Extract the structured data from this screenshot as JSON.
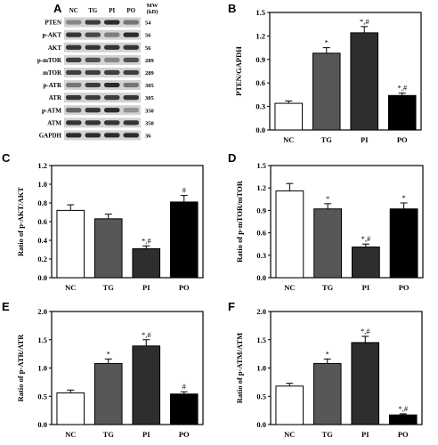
{
  "letters": [
    "A",
    "B",
    "C",
    "D",
    "E",
    "F"
  ],
  "blot": {
    "lanes": [
      "NC",
      "TG",
      "PI",
      "PO"
    ],
    "mw_header_line1": "MW",
    "mw_header_line2": "(kD)",
    "proteins": [
      {
        "name": "PTEN",
        "mw": "54"
      },
      {
        "name": "p-AKT",
        "mw": "56"
      },
      {
        "name": "AKT",
        "mw": "56"
      },
      {
        "name": "p-mTOR",
        "mw": "289"
      },
      {
        "name": "mTOR",
        "mw": "289"
      },
      {
        "name": "p-ATR",
        "mw": "305"
      },
      {
        "name": "ATR",
        "mw": "305"
      },
      {
        "name": "p-ATM",
        "mw": "350"
      },
      {
        "name": "ATM",
        "mw": "350"
      },
      {
        "name": "GAPDH",
        "mw": "36"
      }
    ]
  },
  "chart_data": [
    {
      "panel": "B",
      "type": "bar",
      "categories": [
        "NC",
        "TG",
        "PI",
        "PO"
      ],
      "values": [
        0.34,
        0.98,
        1.24,
        0.44
      ],
      "errors": [
        0.03,
        0.07,
        0.08,
        0.03
      ],
      "annotations": [
        "",
        "*",
        "*,#",
        "*,#"
      ],
      "ylabel": "PTEN/GAPDH",
      "ylim": [
        0.0,
        1.5
      ],
      "yticks": [
        "0.0",
        "0.3",
        "0.6",
        "0.9",
        "1.2",
        "1.5"
      ],
      "bar_colors": [
        "#ffffff",
        "#575757",
        "#2e2e2e",
        "#000000"
      ]
    },
    {
      "panel": "C",
      "type": "bar",
      "categories": [
        "NC",
        "TG",
        "PI",
        "PO"
      ],
      "values": [
        0.72,
        0.63,
        0.31,
        0.81
      ],
      "errors": [
        0.06,
        0.05,
        0.03,
        0.07
      ],
      "annotations": [
        "",
        "",
        "*,#",
        "#"
      ],
      "ylabel": "Ratio of p-AKT/AKT",
      "ylim": [
        0.0,
        1.2
      ],
      "yticks": [
        "0.0",
        "0.2",
        "0.4",
        "0.6",
        "0.8",
        "1.0",
        "1.2"
      ],
      "bar_colors": [
        "#ffffff",
        "#575757",
        "#2e2e2e",
        "#000000"
      ]
    },
    {
      "panel": "D",
      "type": "bar",
      "categories": [
        "NC",
        "TG",
        "PI",
        "PO"
      ],
      "values": [
        1.16,
        0.92,
        0.41,
        0.92
      ],
      "errors": [
        0.1,
        0.07,
        0.04,
        0.08
      ],
      "annotations": [
        "",
        "*",
        "*,#",
        "*"
      ],
      "ylabel": "Ratio of p-mTOR/mTOR",
      "ylim": [
        0.0,
        1.5
      ],
      "yticks": [
        "0.0",
        "0.3",
        "0.6",
        "0.9",
        "1.2",
        "1.5"
      ],
      "bar_colors": [
        "#ffffff",
        "#575757",
        "#2e2e2e",
        "#000000"
      ]
    },
    {
      "panel": "E",
      "type": "bar",
      "categories": [
        "NC",
        "TG",
        "PI",
        "PO"
      ],
      "values": [
        0.56,
        1.08,
        1.39,
        0.54
      ],
      "errors": [
        0.05,
        0.08,
        0.11,
        0.04
      ],
      "annotations": [
        "",
        "*",
        "*,#",
        "#"
      ],
      "ylabel": "Ratio of p-ATR/ATR",
      "ylim": [
        0.0,
        2.0
      ],
      "yticks": [
        "0.0",
        "0.5",
        "1.0",
        "1.5",
        "2.0"
      ],
      "bar_colors": [
        "#ffffff",
        "#575757",
        "#2e2e2e",
        "#000000"
      ]
    },
    {
      "panel": "F",
      "type": "bar",
      "categories": [
        "NC",
        "TG",
        "PI",
        "PO"
      ],
      "values": [
        0.68,
        1.08,
        1.45,
        0.17
      ],
      "errors": [
        0.05,
        0.08,
        0.11,
        0.02
      ],
      "annotations": [
        "",
        "*",
        "*,#",
        "*,#"
      ],
      "ylabel": "Ratio of p-ATM/ATM",
      "ylim": [
        0.0,
        2.0
      ],
      "yticks": [
        "0.0",
        "0.5",
        "1.0",
        "1.5",
        "2.0"
      ],
      "bar_colors": [
        "#ffffff",
        "#575757",
        "#2e2e2e",
        "#000000"
      ]
    }
  ]
}
